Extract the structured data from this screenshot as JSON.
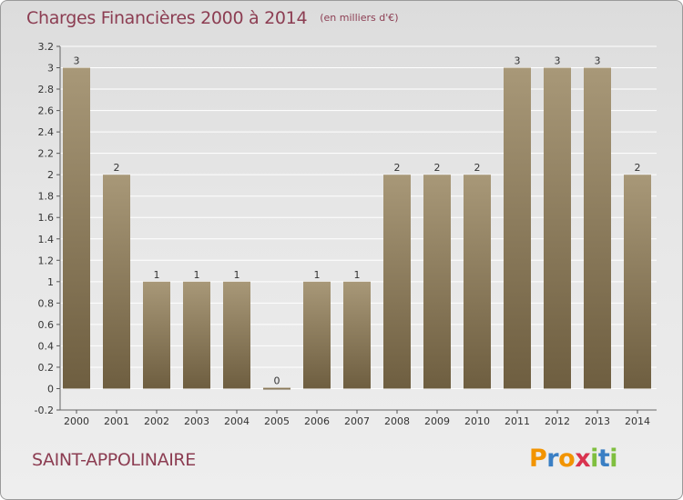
{
  "title": "Charges Financières 2000 à 2014",
  "subtitle": "(en milliers d'€)",
  "location": "SAINT-APPOLINAIRE",
  "logo": {
    "letters": [
      "P",
      "r",
      "o",
      "x",
      "i",
      "t",
      "i"
    ],
    "colors": [
      "#f29400",
      "#3a7fc4",
      "#f29400",
      "#d9334f",
      "#7fbf3f",
      "#3a7fc4",
      "#7fbf3f"
    ]
  },
  "colors": {
    "bar_light": "#a89878",
    "bar_dark": "#6e5e40",
    "title": "#8c3d52",
    "grid": "#ffffff"
  },
  "chart_data": {
    "type": "bar",
    "categories": [
      "2000",
      "2001",
      "2002",
      "2003",
      "2004",
      "2005",
      "2006",
      "2007",
      "2008",
      "2009",
      "2010",
      "2011",
      "2012",
      "2013",
      "2014"
    ],
    "values": [
      3,
      2,
      1,
      1,
      1,
      0,
      1,
      1,
      2,
      2,
      2,
      3,
      3,
      3,
      2
    ],
    "data_labels": [
      "3",
      "2",
      "1",
      "1",
      "1",
      "0",
      "1",
      "1",
      "2",
      "2",
      "2",
      "3",
      "3",
      "3",
      "2"
    ],
    "yticks": [
      "-0.2",
      "0",
      "0.2",
      "0.4",
      "0.6",
      "0.8",
      "1",
      "1.2",
      "1.4",
      "1.6",
      "1.8",
      "2",
      "2.2",
      "2.4",
      "2.6",
      "2.8",
      "3",
      "3.2"
    ],
    "ylim": [
      -0.2,
      3.2
    ],
    "grid": "horizontal",
    "xlabel": "",
    "ylabel": ""
  }
}
